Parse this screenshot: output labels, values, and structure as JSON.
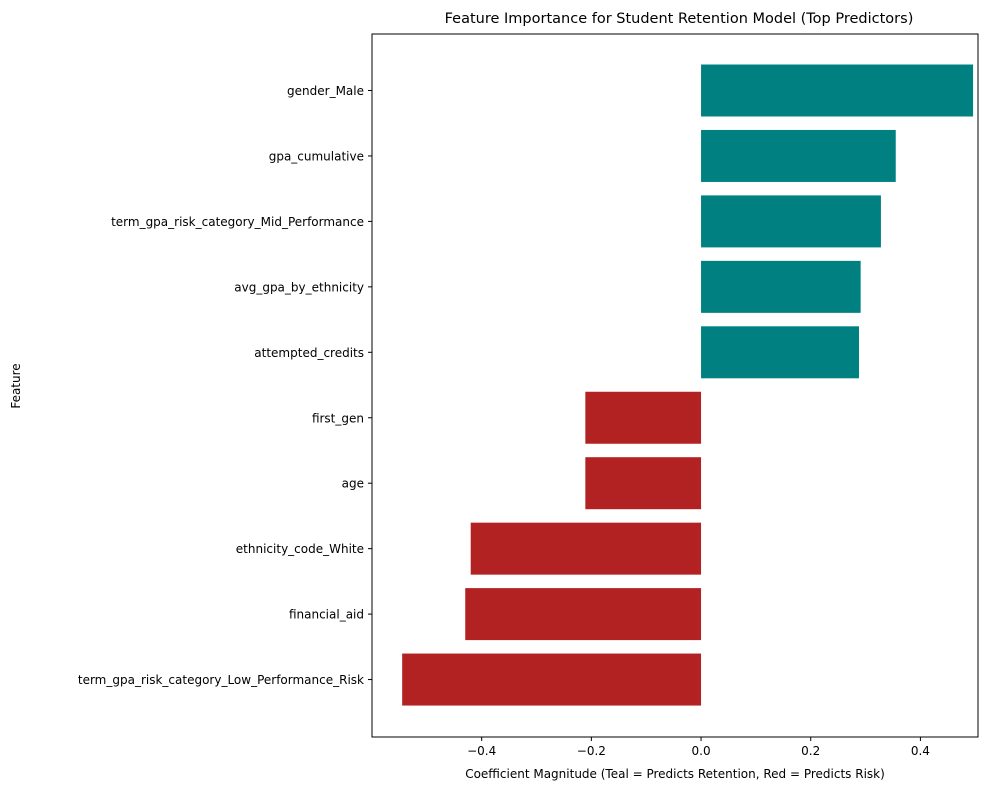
{
  "chart_data": {
    "type": "bar",
    "orientation": "horizontal",
    "title": "Feature Importance for Student Retention Model (Top Predictors)",
    "xlabel": "Coefficient Magnitude (Teal = Predicts Retention, Red = Predicts Risk)",
    "ylabel": "Feature",
    "xlim": [
      -0.6,
      0.505
    ],
    "xticks": [
      -0.4,
      -0.2,
      0.0,
      0.2,
      0.4
    ],
    "xtick_labels": [
      "−0.4",
      "−0.2",
      "0.0",
      "0.2",
      "0.4"
    ],
    "grid": false,
    "legend": "none",
    "categories": [
      "gender_Male",
      "gpa_cumulative",
      "term_gpa_risk_category_Mid_Performance",
      "avg_gpa_by_ethnicity",
      "attempted_credits",
      "first_gen",
      "age",
      "ethnicity_code_White",
      "financial_aid",
      "term_gpa_risk_category_Low_Performance_Risk"
    ],
    "values": [
      0.496,
      0.355,
      0.328,
      0.291,
      0.288,
      -0.211,
      -0.211,
      -0.42,
      -0.43,
      -0.545
    ],
    "colors": {
      "positive": "#008080",
      "negative": "#b22222",
      "axis": "#000000"
    }
  }
}
